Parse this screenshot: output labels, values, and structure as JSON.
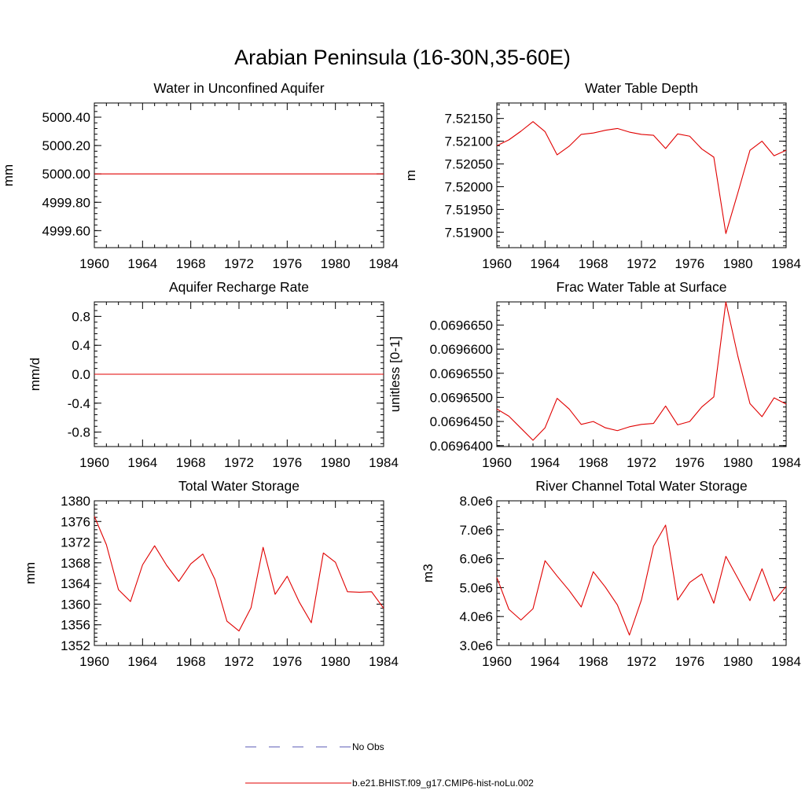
{
  "figure": {
    "title": "Arabian Peninsula (16-30N,35-60E)"
  },
  "legend": {
    "entries": [
      {
        "label": "No Obs",
        "color": "#5a5ab4",
        "style": "dashed"
      },
      {
        "label": "b.e21.BHIST.f09_g17.CMIP6-hist-noLu.002",
        "color": "#e00000",
        "style": "solid"
      }
    ]
  },
  "chart_data": [
    {
      "type": "line",
      "title": "Water in Unconfined Aquifer",
      "ylabel": "mm",
      "xlim": [
        1960,
        1984
      ],
      "ylim": [
        4999.48,
        5000.5
      ],
      "xticks": [
        1960,
        1964,
        1968,
        1972,
        1976,
        1980,
        1984
      ],
      "yticks": [
        4999.6,
        4999.8,
        5000.0,
        5000.2,
        5000.4
      ],
      "ytick_labels": [
        "4999.60",
        "4999.80",
        "5000.00",
        "5000.20",
        "5000.40"
      ],
      "yminor_step": 0.04,
      "series": [
        {
          "x": [
            1960,
            1961,
            1962,
            1963,
            1964,
            1965,
            1966,
            1967,
            1968,
            1969,
            1970,
            1971,
            1972,
            1973,
            1974,
            1975,
            1976,
            1977,
            1978,
            1979,
            1980,
            1981,
            1982,
            1983,
            1984
          ],
          "values": [
            5000.0,
            5000.0,
            5000.0,
            5000.0,
            5000.0,
            5000.0,
            5000.0,
            5000.0,
            5000.0,
            5000.0,
            5000.0,
            5000.0,
            5000.0,
            5000.0,
            5000.0,
            5000.0,
            5000.0,
            5000.0,
            5000.0,
            5000.0,
            5000.0,
            5000.0,
            5000.0,
            5000.0,
            5000.0
          ]
        }
      ]
    },
    {
      "type": "line",
      "title": "Water Table Depth",
      "ylabel": "m",
      "xlim": [
        1960,
        1984
      ],
      "ylim": [
        7.51866,
        7.52184
      ],
      "xticks": [
        1960,
        1964,
        1968,
        1972,
        1976,
        1980,
        1984
      ],
      "yticks": [
        7.519,
        7.5195,
        7.52,
        7.5205,
        7.521,
        7.5215
      ],
      "ytick_labels": [
        "7.51900",
        "7.51950",
        "7.52000",
        "7.52050",
        "7.52100",
        "7.52150"
      ],
      "yminor_step": 0.0001,
      "series": [
        {
          "x": [
            1960,
            1961,
            1962,
            1963,
            1964,
            1965,
            1966,
            1967,
            1968,
            1969,
            1970,
            1971,
            1972,
            1973,
            1974,
            1975,
            1976,
            1977,
            1978,
            1979,
            1980,
            1981,
            1982,
            1983,
            1984
          ],
          "values": [
            7.5209,
            7.52103,
            7.52122,
            7.52143,
            7.52121,
            7.5207,
            7.52089,
            7.52115,
            7.52118,
            7.52124,
            7.52128,
            7.5212,
            7.52115,
            7.52113,
            7.52084,
            7.52116,
            7.52111,
            7.52083,
            7.52065,
            7.51897,
            7.51987,
            7.5208,
            7.521,
            7.52068,
            7.5208
          ]
        }
      ]
    },
    {
      "type": "line",
      "title": "Aquifer Recharge Rate",
      "ylabel": "mm/d",
      "xlim": [
        1960,
        1984
      ],
      "ylim": [
        -1.0,
        1.0
      ],
      "xticks": [
        1960,
        1964,
        1968,
        1972,
        1976,
        1980,
        1984
      ],
      "yticks": [
        -0.8,
        -0.4,
        0.0,
        0.4,
        0.8
      ],
      "ytick_labels": [
        "-0.8",
        "-0.4",
        "0.0",
        "0.4",
        "0.8"
      ],
      "yminor_step": 0.08,
      "series": [
        {
          "x": [
            1960,
            1961,
            1962,
            1963,
            1964,
            1965,
            1966,
            1967,
            1968,
            1969,
            1970,
            1971,
            1972,
            1973,
            1974,
            1975,
            1976,
            1977,
            1978,
            1979,
            1980,
            1981,
            1982,
            1983,
            1984
          ],
          "values": [
            0,
            0,
            0,
            0,
            0,
            0,
            0,
            0,
            0,
            0,
            0,
            0,
            0,
            0,
            0,
            0,
            0,
            0,
            0,
            0,
            0,
            0,
            0,
            0,
            0
          ]
        }
      ]
    },
    {
      "type": "line",
      "title": "Frac Water Table at Surface",
      "ylabel": "unitless [0-1]",
      "xlim": [
        1960,
        1984
      ],
      "ylim": [
        0.0696398,
        0.0696698
      ],
      "xticks": [
        1960,
        1964,
        1968,
        1972,
        1976,
        1980,
        1984
      ],
      "yticks": [
        0.06964,
        0.069645,
        0.06965,
        0.069655,
        0.06966,
        0.069665
      ],
      "ytick_labels": [
        "0.0696400",
        "0.0696450",
        "0.0696500",
        "0.0696550",
        "0.0696600",
        "0.0696650"
      ],
      "yminor_step": 1e-06,
      "series": [
        {
          "x": [
            1960,
            1961,
            1962,
            1963,
            1964,
            1965,
            1966,
            1967,
            1968,
            1969,
            1970,
            1971,
            1972,
            1973,
            1974,
            1975,
            1976,
            1977,
            1978,
            1979,
            1980,
            1981,
            1982,
            1983,
            1984
          ],
          "values": [
            0.0696476,
            0.0696461,
            0.0696436,
            0.0696411,
            0.0696437,
            0.0696498,
            0.0696476,
            0.0696444,
            0.069645,
            0.0696437,
            0.0696431,
            0.0696439,
            0.0696444,
            0.0696446,
            0.0696482,
            0.0696443,
            0.069645,
            0.069648,
            0.0696501,
            0.0696698,
            0.0696585,
            0.0696487,
            0.069646,
            0.0696499,
            0.0696486
          ]
        }
      ]
    },
    {
      "type": "line",
      "title": "Total Water Storage",
      "ylabel": "mm",
      "xlim": [
        1960,
        1984
      ],
      "ylim": [
        1352,
        1380
      ],
      "xticks": [
        1960,
        1964,
        1968,
        1972,
        1976,
        1980,
        1984
      ],
      "yticks": [
        1352,
        1356,
        1360,
        1364,
        1368,
        1372,
        1376,
        1380
      ],
      "ytick_labels": [
        "1352",
        "1356",
        "1360",
        "1364",
        "1368",
        "1372",
        "1376",
        "1380"
      ],
      "yminor_step": 0.8,
      "series": [
        {
          "x": [
            1960,
            1961,
            1962,
            1963,
            1964,
            1965,
            1966,
            1967,
            1968,
            1969,
            1970,
            1971,
            1972,
            1973,
            1974,
            1975,
            1976,
            1977,
            1978,
            1979,
            1980,
            1981,
            1982,
            1983,
            1984
          ],
          "values": [
            1377.0,
            1371.5,
            1362.8,
            1360.5,
            1367.6,
            1371.3,
            1367.5,
            1364.4,
            1367.8,
            1369.7,
            1364.8,
            1356.7,
            1354.8,
            1359.3,
            1371.0,
            1361.9,
            1365.4,
            1360.4,
            1356.4,
            1369.9,
            1368.1,
            1362.4,
            1362.3,
            1362.4,
            1359.2
          ]
        }
      ]
    },
    {
      "type": "line",
      "title": "River Channel Total Water Storage",
      "ylabel": "m3",
      "xlim": [
        1960,
        1984
      ],
      "ylim": [
        3000000,
        8000000
      ],
      "xticks": [
        1960,
        1964,
        1968,
        1972,
        1976,
        1980,
        1984
      ],
      "yticks": [
        3000000,
        4000000,
        5000000,
        6000000,
        7000000,
        8000000
      ],
      "ytick_labels": [
        "3.0e6",
        "4.0e6",
        "5.0e6",
        "6.0e6",
        "7.0e6",
        "8.0e6"
      ],
      "yminor_step": 200000,
      "series": [
        {
          "x": [
            1960,
            1961,
            1962,
            1963,
            1964,
            1965,
            1966,
            1967,
            1968,
            1969,
            1970,
            1971,
            1972,
            1973,
            1974,
            1975,
            1976,
            1977,
            1978,
            1979,
            1980,
            1981,
            1982,
            1983,
            1984
          ],
          "values": [
            5350000,
            4250000,
            3880000,
            4270000,
            5930000,
            5400000,
            4900000,
            4330000,
            5550000,
            5020000,
            4400000,
            3360000,
            4580000,
            6430000,
            7160000,
            4570000,
            5180000,
            5470000,
            4460000,
            6080000,
            5320000,
            4550000,
            5650000,
            4540000,
            5040000
          ]
        }
      ]
    }
  ]
}
